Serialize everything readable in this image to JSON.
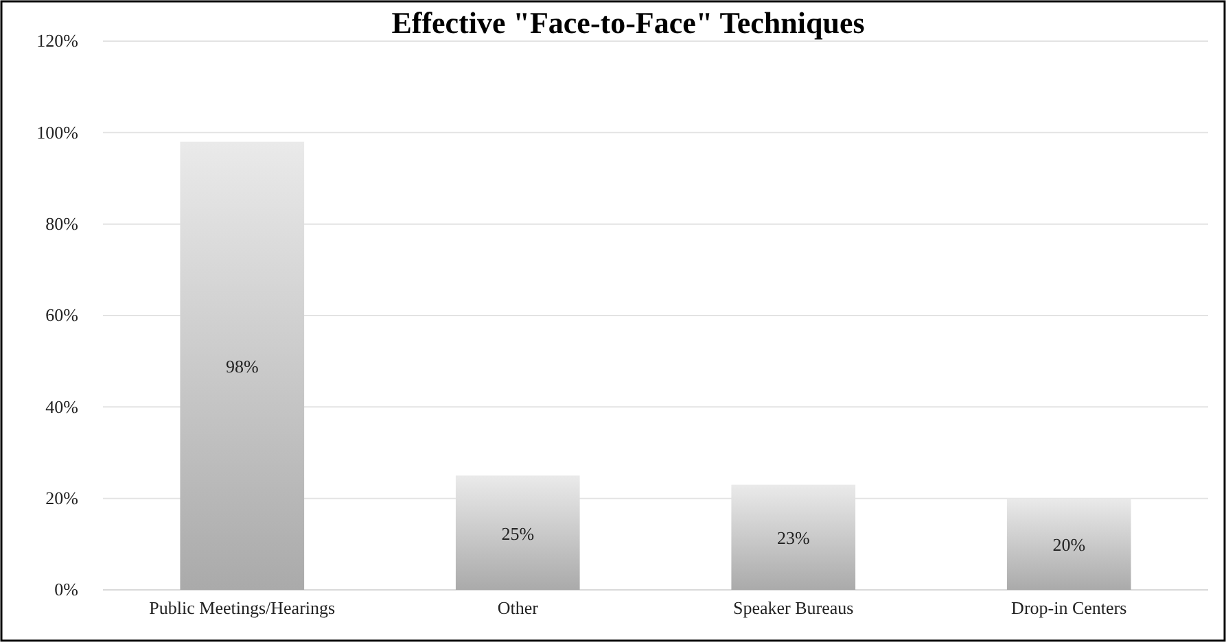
{
  "chart_data": {
    "type": "bar",
    "title": "Effective \"Face-to-Face\" Techniques",
    "categories": [
      "Public Meetings/Hearings",
      "Other",
      "Speaker Bureaus",
      "Drop-in Centers"
    ],
    "values": [
      98,
      25,
      23,
      20
    ],
    "value_labels": [
      "98%",
      "25%",
      "23%",
      "20%"
    ],
    "color": "#c4c4c4",
    "ylim": [
      0,
      120
    ],
    "yticks": [
      {
        "value": 0,
        "label": "0%"
      },
      {
        "value": 20,
        "label": "20%"
      },
      {
        "value": 40,
        "label": "40%"
      },
      {
        "value": 60,
        "label": "60%"
      },
      {
        "value": 80,
        "label": "80%"
      },
      {
        "value": 100,
        "label": "100%"
      },
      {
        "value": 120,
        "label": "120%"
      }
    ],
    "grid": "y"
  }
}
